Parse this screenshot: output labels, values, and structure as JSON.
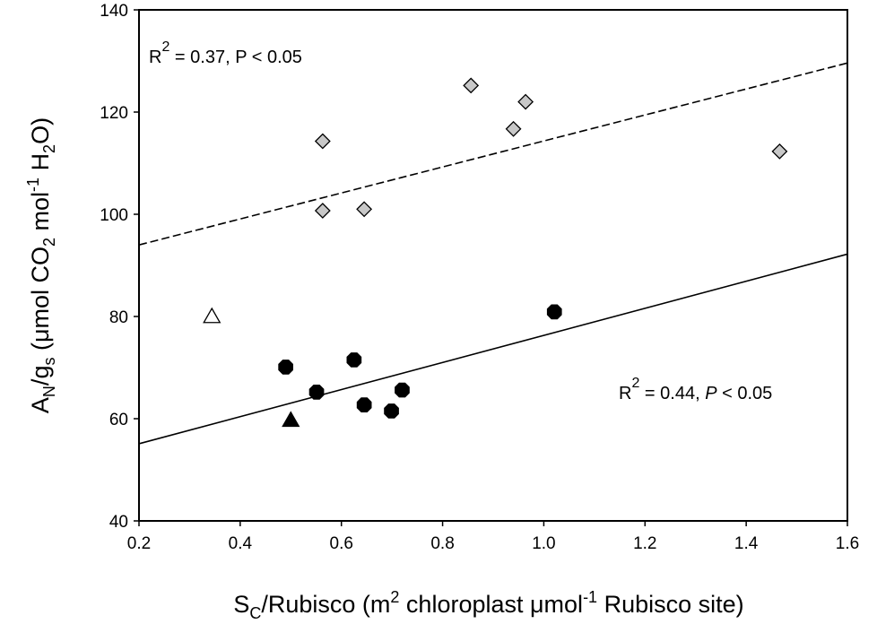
{
  "chart_data": {
    "type": "scatter",
    "xlabel": "S_C/Rubisco (m^2 chloroplast μmol^-1 Rubisco site)",
    "ylabel": "A_N/g_s (μmol CO_2 mol^-1 H_2O)",
    "xlim": [
      0.2,
      1.6
    ],
    "ylim": [
      40,
      140
    ],
    "xticks": [
      "0.2",
      "0.4",
      "0.6",
      "0.8",
      "1.0",
      "1.2",
      "1.4",
      "1.6"
    ],
    "yticks": [
      "40",
      "60",
      "80",
      "100",
      "120",
      "140"
    ],
    "grid": false,
    "series": [
      {
        "marker": "diamond",
        "fill": "#c8c8c8",
        "points": [
          {
            "x": 0.563,
            "y": 114.3
          },
          {
            "x": 0.563,
            "y": 100.7
          },
          {
            "x": 0.645,
            "y": 101.0
          },
          {
            "x": 0.856,
            "y": 125.2
          },
          {
            "x": 0.94,
            "y": 116.7
          },
          {
            "x": 0.964,
            "y": 122.0
          },
          {
            "x": 1.466,
            "y": 112.3
          }
        ],
        "fit": {
          "x1": 0.2,
          "y1": 94.0,
          "x2": 1.6,
          "y2": 129.6,
          "style": "dashed"
        }
      },
      {
        "marker": "octagon",
        "fill": "#000000",
        "points": [
          {
            "x": 0.49,
            "y": 70.1
          },
          {
            "x": 0.551,
            "y": 65.2
          },
          {
            "x": 0.625,
            "y": 71.5
          },
          {
            "x": 0.645,
            "y": 62.7
          },
          {
            "x": 0.699,
            "y": 61.5
          },
          {
            "x": 0.72,
            "y": 65.6
          },
          {
            "x": 1.021,
            "y": 80.9
          }
        ],
        "fit": {
          "x1": 0.2,
          "y1": 55.1,
          "x2": 1.6,
          "y2": 92.2,
          "style": "solid"
        }
      },
      {
        "marker": "triangle",
        "fill": "#ffffff",
        "points": [
          {
            "x": 0.344,
            "y": 80.0
          }
        ]
      },
      {
        "marker": "triangle",
        "fill": "#000000",
        "points": [
          {
            "x": 0.5,
            "y": 59.7
          }
        ]
      }
    ],
    "annotations": [
      {
        "r2": "0.37",
        "p": "0.05",
        "placement": "top-left"
      },
      {
        "r2": "0.44",
        "p": "0.05",
        "placement": "lower-right"
      }
    ]
  },
  "labels": {
    "annot_top": {
      "r": "R",
      "sup": "2",
      "rest": " = 0.37, P < 0.05"
    },
    "annot_bottom": {
      "r": "R",
      "sup": "2",
      "rest": " = 0.44, ",
      "p": "P",
      "rest2": " < 0.05"
    },
    "xlabel": {
      "s": "S",
      "s_sub": "C",
      "a": "/Rubisco (m",
      "sup1": "2",
      "b": " chloroplast μmol",
      "sup2": "-1",
      "c": " Rubisco site)"
    },
    "ylabel": {
      "a": "A",
      "a_sub": "N",
      "b": "/g",
      "b_sub": "s",
      "c": " (μmol CO",
      "c_sub": "2",
      "d": " mol",
      "d_sup": "-1",
      "e": " H",
      "e_sub": "2",
      "f": "O)"
    }
  }
}
